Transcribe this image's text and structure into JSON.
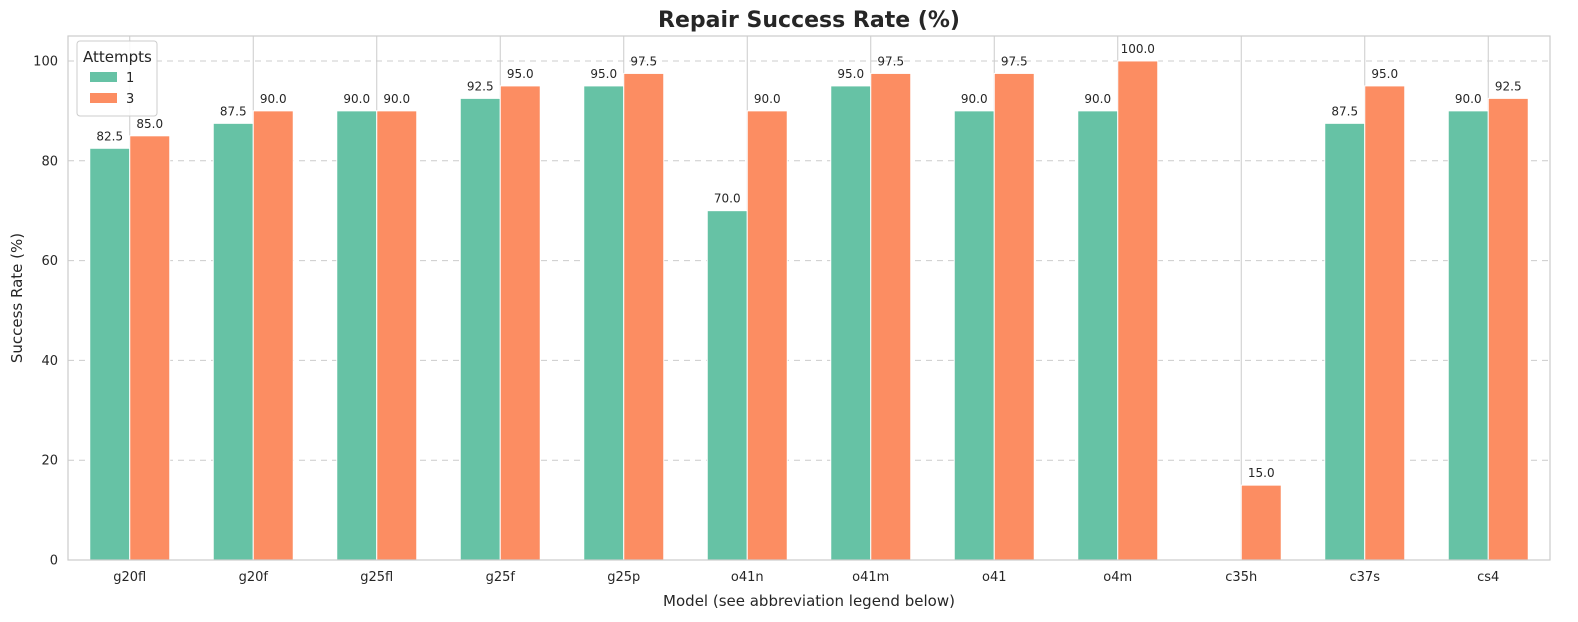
{
  "chart_data": {
    "type": "bar",
    "title": "Repair Success Rate (%)",
    "xlabel": "Model (see abbreviation legend below)",
    "ylabel": "Success Rate (%)",
    "ylim": [
      0,
      105
    ],
    "yticks": [
      0,
      20,
      40,
      60,
      80,
      100
    ],
    "grid": "y-dashed",
    "legend": {
      "title": "Attempts",
      "placement": "top-left"
    },
    "categories": [
      "g20fl",
      "g20f",
      "g25fl",
      "g25f",
      "g25p",
      "o41n",
      "o41m",
      "o41",
      "o4m",
      "c35h",
      "c37s",
      "cs4"
    ],
    "series": [
      {
        "name": "1",
        "color": "#66c2a5",
        "values": [
          82.5,
          87.5,
          90.0,
          92.5,
          95.0,
          70.0,
          95.0,
          90.0,
          90.0,
          null,
          87.5,
          90.0
        ]
      },
      {
        "name": "3",
        "color": "#fc8d62",
        "values": [
          85.0,
          90.0,
          90.0,
          95.0,
          97.5,
          90.0,
          97.5,
          97.5,
          100.0,
          15.0,
          95.0,
          92.5
        ]
      }
    ]
  }
}
